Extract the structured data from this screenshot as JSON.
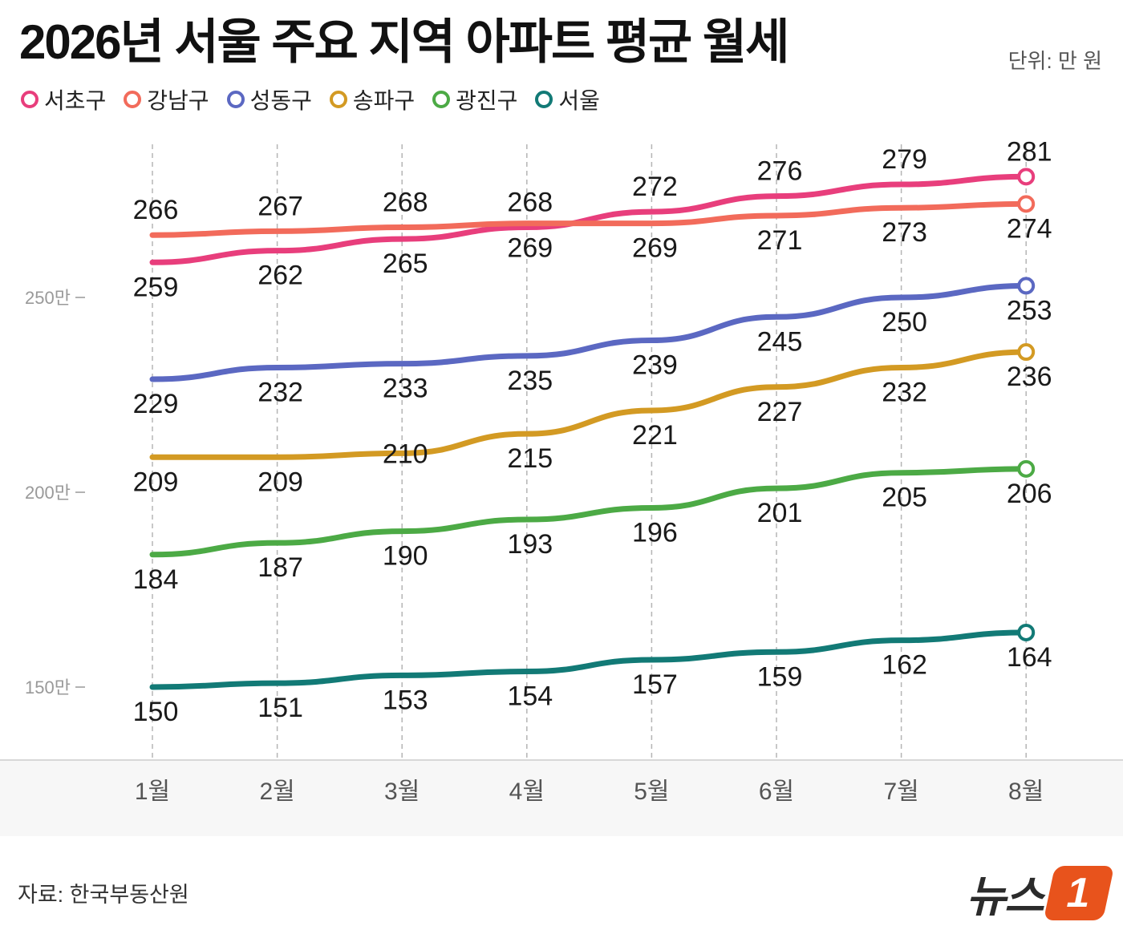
{
  "header": {
    "title": "2026년 서울 주요 지역 아파트 평균 월세",
    "unit": "단위: 만 원"
  },
  "footer": {
    "source": "자료: 한국부동산원",
    "logo_text": "뉴스",
    "logo_mark": "1"
  },
  "chart_data": {
    "type": "line",
    "title": "2026년 서울 주요 지역 아파트 평균 월세",
    "unit": "단위: 만 원",
    "categories": [
      "1월",
      "2월",
      "3월",
      "4월",
      "5월",
      "6월",
      "7월",
      "8월"
    ],
    "y_ticks": [
      {
        "value": 150,
        "label": "150만"
      },
      {
        "value": 200,
        "label": "200만"
      },
      {
        "value": 250,
        "label": "250만"
      }
    ],
    "grid": "vertical dashed",
    "legend_position": "top-left",
    "series": [
      {
        "name": "서초구",
        "color": "#e83e7c",
        "values": [
          259,
          262,
          265,
          268,
          272,
          276,
          279,
          281
        ],
        "label_pos": [
          "below",
          "below",
          "below",
          "above",
          "above",
          "above",
          "above",
          "above"
        ]
      },
      {
        "name": "강남구",
        "color": "#f26b5b",
        "values": [
          266,
          267,
          268,
          269,
          269,
          271,
          273,
          274
        ],
        "label_pos": [
          "above",
          "above",
          "above",
          "below",
          "below",
          "below",
          "below",
          "below"
        ]
      },
      {
        "name": "성동구",
        "color": "#5b68c2",
        "values": [
          229,
          232,
          233,
          235,
          239,
          245,
          250,
          253
        ],
        "label_pos": [
          "below",
          "below",
          "below",
          "below",
          "below",
          "below",
          "below",
          "below"
        ]
      },
      {
        "name": "송파구",
        "color": "#d39a23",
        "values": [
          209,
          209,
          210,
          215,
          221,
          227,
          232,
          236
        ],
        "label_pos": [
          "below",
          "below",
          "on",
          "below",
          "below",
          "below",
          "below",
          "below"
        ]
      },
      {
        "name": "광진구",
        "color": "#4caa45",
        "values": [
          184,
          187,
          190,
          193,
          196,
          201,
          205,
          206
        ],
        "label_pos": [
          "below",
          "below",
          "below",
          "below",
          "below",
          "below",
          "below",
          "below"
        ]
      },
      {
        "name": "서울",
        "color": "#127a76",
        "values": [
          150,
          151,
          153,
          154,
          157,
          159,
          162,
          164
        ],
        "label_pos": [
          "below",
          "below",
          "below",
          "below",
          "below",
          "below",
          "below",
          "below"
        ]
      }
    ]
  }
}
